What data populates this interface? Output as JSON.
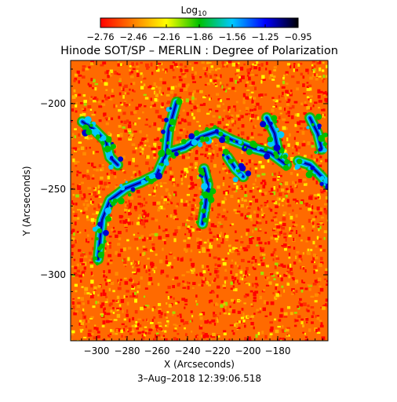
{
  "colorbar": {
    "label": "Log",
    "label_subscript": "10",
    "tick_labels": [
      "−2.76",
      "−2.46",
      "−2.16",
      "−1.86",
      "−1.56",
      "−1.25",
      "−0.95"
    ],
    "gradient_stops": [
      "#ff0000",
      "#ff7f00",
      "#ffff00",
      "#00c000",
      "#00c8ff",
      "#0000ff",
      "#000000"
    ]
  },
  "title": "Hinode SOT/SP – MERLIN : Degree of Polarization",
  "axes": {
    "xlabel": "X (Arcseconds)",
    "ylabel": "Y (Arcseconds)",
    "x_ticks": [
      "−300",
      "−280",
      "−260",
      "−240",
      "−220",
      "−200",
      "−180"
    ],
    "y_ticks": [
      "−200",
      "−250",
      "−300"
    ]
  },
  "timestamp": "3–Aug–2018 12:39:06.518"
}
